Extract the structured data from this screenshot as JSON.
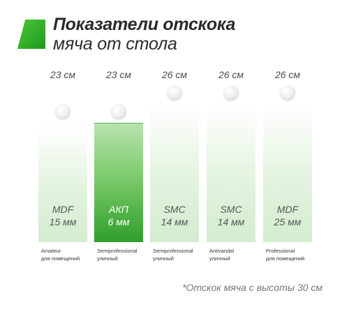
{
  "header": {
    "title_line1": "Показатели отскока",
    "title_line2": "мяча от стола",
    "accent_color": "#2aa82a"
  },
  "items": [
    {
      "height": "23 см",
      "material": "MDF",
      "thickness": "15 мм",
      "level": "Amateur",
      "usage": "для помещений",
      "highlighted": false
    },
    {
      "height": "23 см",
      "material": "АКП",
      "thickness": "6 мм",
      "level": "Semiprofessional",
      "usage": "уличный",
      "highlighted": true
    },
    {
      "height": "26 см",
      "material": "SMC",
      "thickness": "14 мм",
      "level": "Semiprofessional",
      "usage": "уличный",
      "highlighted": false
    },
    {
      "height": "26 см",
      "material": "SMC",
      "thickness": "14 мм",
      "level": "Antivandal",
      "usage": "уличный",
      "highlighted": false
    },
    {
      "height": "26 см",
      "material": "MDF",
      "thickness": "25 мм",
      "level": "Professional",
      "usage": "для помещений",
      "highlighted": false
    }
  ],
  "footnote": "*Отскок мяча с высоты 30 см"
}
